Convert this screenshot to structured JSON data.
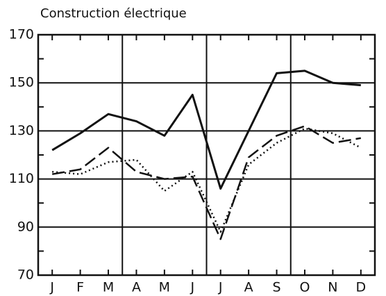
{
  "chart_data": {
    "type": "line",
    "title": "Construction électrique",
    "categories": [
      "J",
      "F",
      "M",
      "A",
      "M",
      "J",
      "J",
      "A",
      "S",
      "O",
      "N",
      "D"
    ],
    "series": [
      {
        "color": "#111111",
        "dash": "solid",
        "values": [
          122,
          129,
          137,
          134,
          128,
          145,
          106,
          130,
          154,
          155,
          150,
          149
        ]
      },
      {
        "color": "#111111",
        "dash": "dashed",
        "values": [
          112,
          114,
          123,
          113,
          110,
          111,
          85,
          119,
          128,
          132,
          125,
          127
        ]
      },
      {
        "color": "#111111",
        "dash": "dotted",
        "values": [
          113,
          112,
          117,
          118,
          105,
          113,
          88,
          116,
          125,
          131,
          129,
          123
        ]
      }
    ],
    "ylim": [
      70,
      170
    ],
    "yticks": [
      70,
      90,
      110,
      130,
      150,
      170
    ],
    "grid": true
  }
}
